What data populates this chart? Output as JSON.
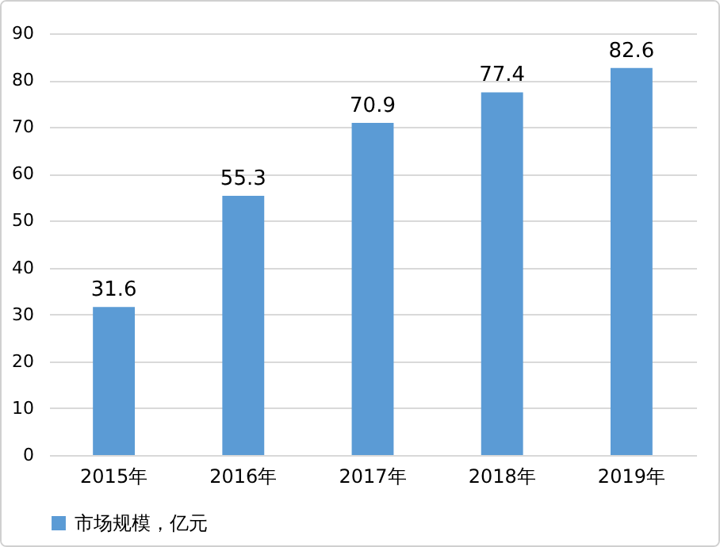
{
  "chart_data": {
    "type": "bar",
    "categories": [
      "2015年",
      "2016年",
      "2017年",
      "2018年",
      "2019年"
    ],
    "series": [
      {
        "name": "市场规模，亿元",
        "color": "#5b9bd5",
        "values": [
          31.6,
          55.3,
          70.9,
          77.4,
          82.6
        ]
      }
    ],
    "ylim": [
      0,
      90
    ],
    "yticks": [
      0,
      10,
      20,
      30,
      40,
      50,
      60,
      70,
      80,
      90
    ],
    "grid": "y",
    "legend": "bottom",
    "data_labels": true
  }
}
